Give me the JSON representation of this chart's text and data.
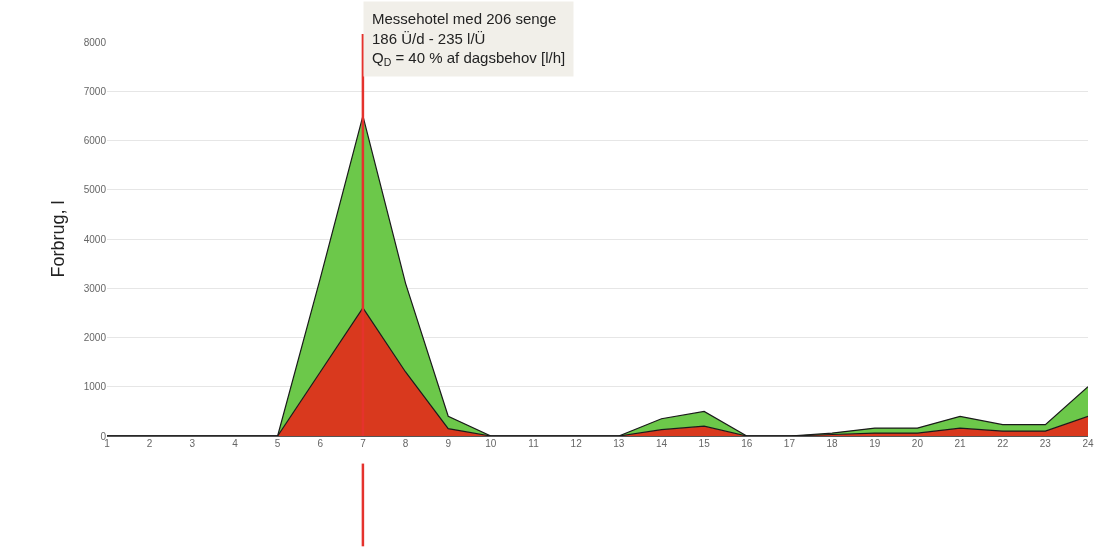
{
  "chart_data": {
    "type": "area",
    "stacked": true,
    "ylabel": "Forbrug, l",
    "annotations": [
      "Messehotel med 206 senge\n186 Ü/d - 235 l/Ü\nQ$_{D}$ = 40 % af dagsbehov [l/h]"
    ],
    "x": [
      1,
      2,
      3,
      4,
      5,
      6,
      7,
      8,
      9,
      10,
      11,
      12,
      13,
      14,
      15,
      16,
      17,
      18,
      19,
      20,
      21,
      22,
      23,
      24
    ],
    "series": [
      {
        "color": "#d9391e",
        "values": [
          0,
          0,
          0,
          0,
          0,
          1300,
          2600,
          1300,
          150,
          0,
          0,
          0,
          0,
          130,
          200,
          0,
          0,
          30,
          60,
          60,
          160,
          100,
          100,
          400
        ]
      },
      {
        "color": "#6cc84a",
        "values": [
          0,
          0,
          0,
          0,
          0,
          1900,
          3900,
          1800,
          250,
          0,
          0,
          0,
          0,
          220,
          300,
          0,
          0,
          30,
          100,
          100,
          240,
          130,
          130,
          600
        ]
      }
    ],
    "xlim": [
      1,
      24
    ],
    "xticks": [
      1,
      2,
      3,
      4,
      5,
      6,
      7,
      8,
      9,
      10,
      11,
      12,
      13,
      14,
      15,
      16,
      17,
      18,
      19,
      20,
      21,
      22,
      23,
      24
    ],
    "ylim": [
      0,
      8000
    ],
    "yticks": [
      0,
      1000,
      2000,
      3000,
      4000,
      5000,
      6000,
      7000,
      8000
    ],
    "grid": "y",
    "ref_lines": [
      {
        "axis": "x",
        "value": 7,
        "color": "#e5322d"
      }
    ]
  }
}
